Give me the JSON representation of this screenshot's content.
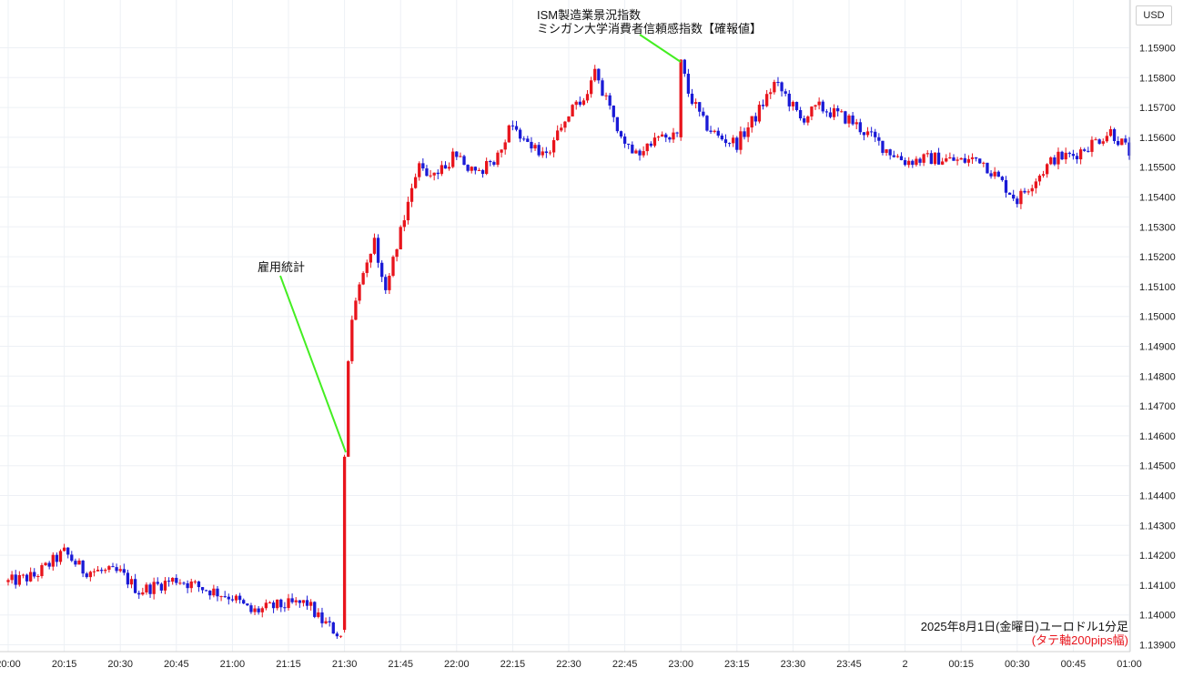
{
  "currency_button": "USD",
  "chart_data": {
    "type": "candlestick",
    "caption": "2025年8月1日(金曜日)ユーロドル1分足",
    "subcaption": "(タテ軸200pips幅)",
    "ylim": [
      1.1385,
      1.16
    ],
    "y_ticks": [
      "1.15900",
      "1.15800",
      "1.15700",
      "1.15600",
      "1.15500",
      "1.15400",
      "1.15300",
      "1.15200",
      "1.15100",
      "1.15000",
      "1.14900",
      "1.14800",
      "1.14700",
      "1.14600",
      "1.14500",
      "1.14400",
      "1.14300",
      "1.14200",
      "1.14100",
      "1.14000",
      "1.13900"
    ],
    "x_ticks": [
      "20:00",
      "20:15",
      "20:30",
      "20:45",
      "21:00",
      "21:15",
      "21:30",
      "21:45",
      "22:00",
      "22:15",
      "22:30",
      "22:45",
      "23:00",
      "23:15",
      "23:30",
      "23:45",
      "2",
      "00:15",
      "00:30",
      "00:45",
      "01:00"
    ],
    "up_color": "#e8141c",
    "down_color": "#1a1ad6",
    "annotations": [
      {
        "lines": [
          "雇用統計"
        ],
        "time": "21:30"
      },
      {
        "lines": [
          "ISM製造業景況指数",
          "ミシガン大学消費者信頼感指数【確報値】"
        ],
        "time": "23:00"
      }
    ],
    "annotation_line_color": "#44ee22",
    "close_path": [
      [
        "20:00",
        1.1411
      ],
      [
        "20:07",
        1.1413
      ],
      [
        "20:15",
        1.1421
      ],
      [
        "20:20",
        1.1415
      ],
      [
        "20:30",
        1.1414
      ],
      [
        "20:35",
        1.1408
      ],
      [
        "20:45",
        1.1412
      ],
      [
        "20:52",
        1.1409
      ],
      [
        "21:00",
        1.1406
      ],
      [
        "21:05",
        1.1401
      ],
      [
        "21:12",
        1.1403
      ],
      [
        "21:20",
        1.1404
      ],
      [
        "21:23",
        1.1399
      ],
      [
        "21:29",
        1.1393
      ],
      [
        "21:30",
        1.1452
      ],
      [
        "21:32",
        1.15
      ],
      [
        "21:35",
        1.1514
      ],
      [
        "21:38",
        1.1525
      ],
      [
        "21:41",
        1.1508
      ],
      [
        "21:45",
        1.153
      ],
      [
        "21:50",
        1.155
      ],
      [
        "21:55",
        1.1548
      ],
      [
        "22:00",
        1.1555
      ],
      [
        "22:05",
        1.1547
      ],
      [
        "22:10",
        1.1553
      ],
      [
        "22:15",
        1.1565
      ],
      [
        "22:20",
        1.1556
      ],
      [
        "22:25",
        1.1555
      ],
      [
        "22:30",
        1.1568
      ],
      [
        "22:35",
        1.1575
      ],
      [
        "22:37",
        1.1581
      ],
      [
        "22:40",
        1.1572
      ],
      [
        "22:45",
        1.1558
      ],
      [
        "22:50",
        1.1555
      ],
      [
        "22:55",
        1.1561
      ],
      [
        "22:59",
        1.156
      ],
      [
        "23:00",
        1.1585
      ],
      [
        "23:02",
        1.1575
      ],
      [
        "23:06",
        1.1565
      ],
      [
        "23:10",
        1.156
      ],
      [
        "23:15",
        1.1558
      ],
      [
        "23:20",
        1.1567
      ],
      [
        "23:25",
        1.1578
      ],
      [
        "23:28",
        1.1574
      ],
      [
        "23:32",
        1.1566
      ],
      [
        "23:37",
        1.157
      ],
      [
        "23:45",
        1.1566
      ],
      [
        "23:50",
        1.1561
      ],
      [
        "23:55",
        1.1556
      ],
      [
        "00:00",
        1.1552
      ],
      [
        "00:08",
        1.1553
      ],
      [
        "00:15",
        1.1552
      ],
      [
        "00:20",
        1.1553
      ],
      [
        "00:25",
        1.1546
      ],
      [
        "00:30",
        1.1539
      ],
      [
        "00:34",
        1.1545
      ],
      [
        "00:40",
        1.1553
      ],
      [
        "00:45",
        1.1554
      ],
      [
        "00:50",
        1.1558
      ],
      [
        "00:55",
        1.1562
      ],
      [
        "00:58",
        1.1558
      ],
      [
        "01:00",
        1.1555
      ]
    ]
  }
}
